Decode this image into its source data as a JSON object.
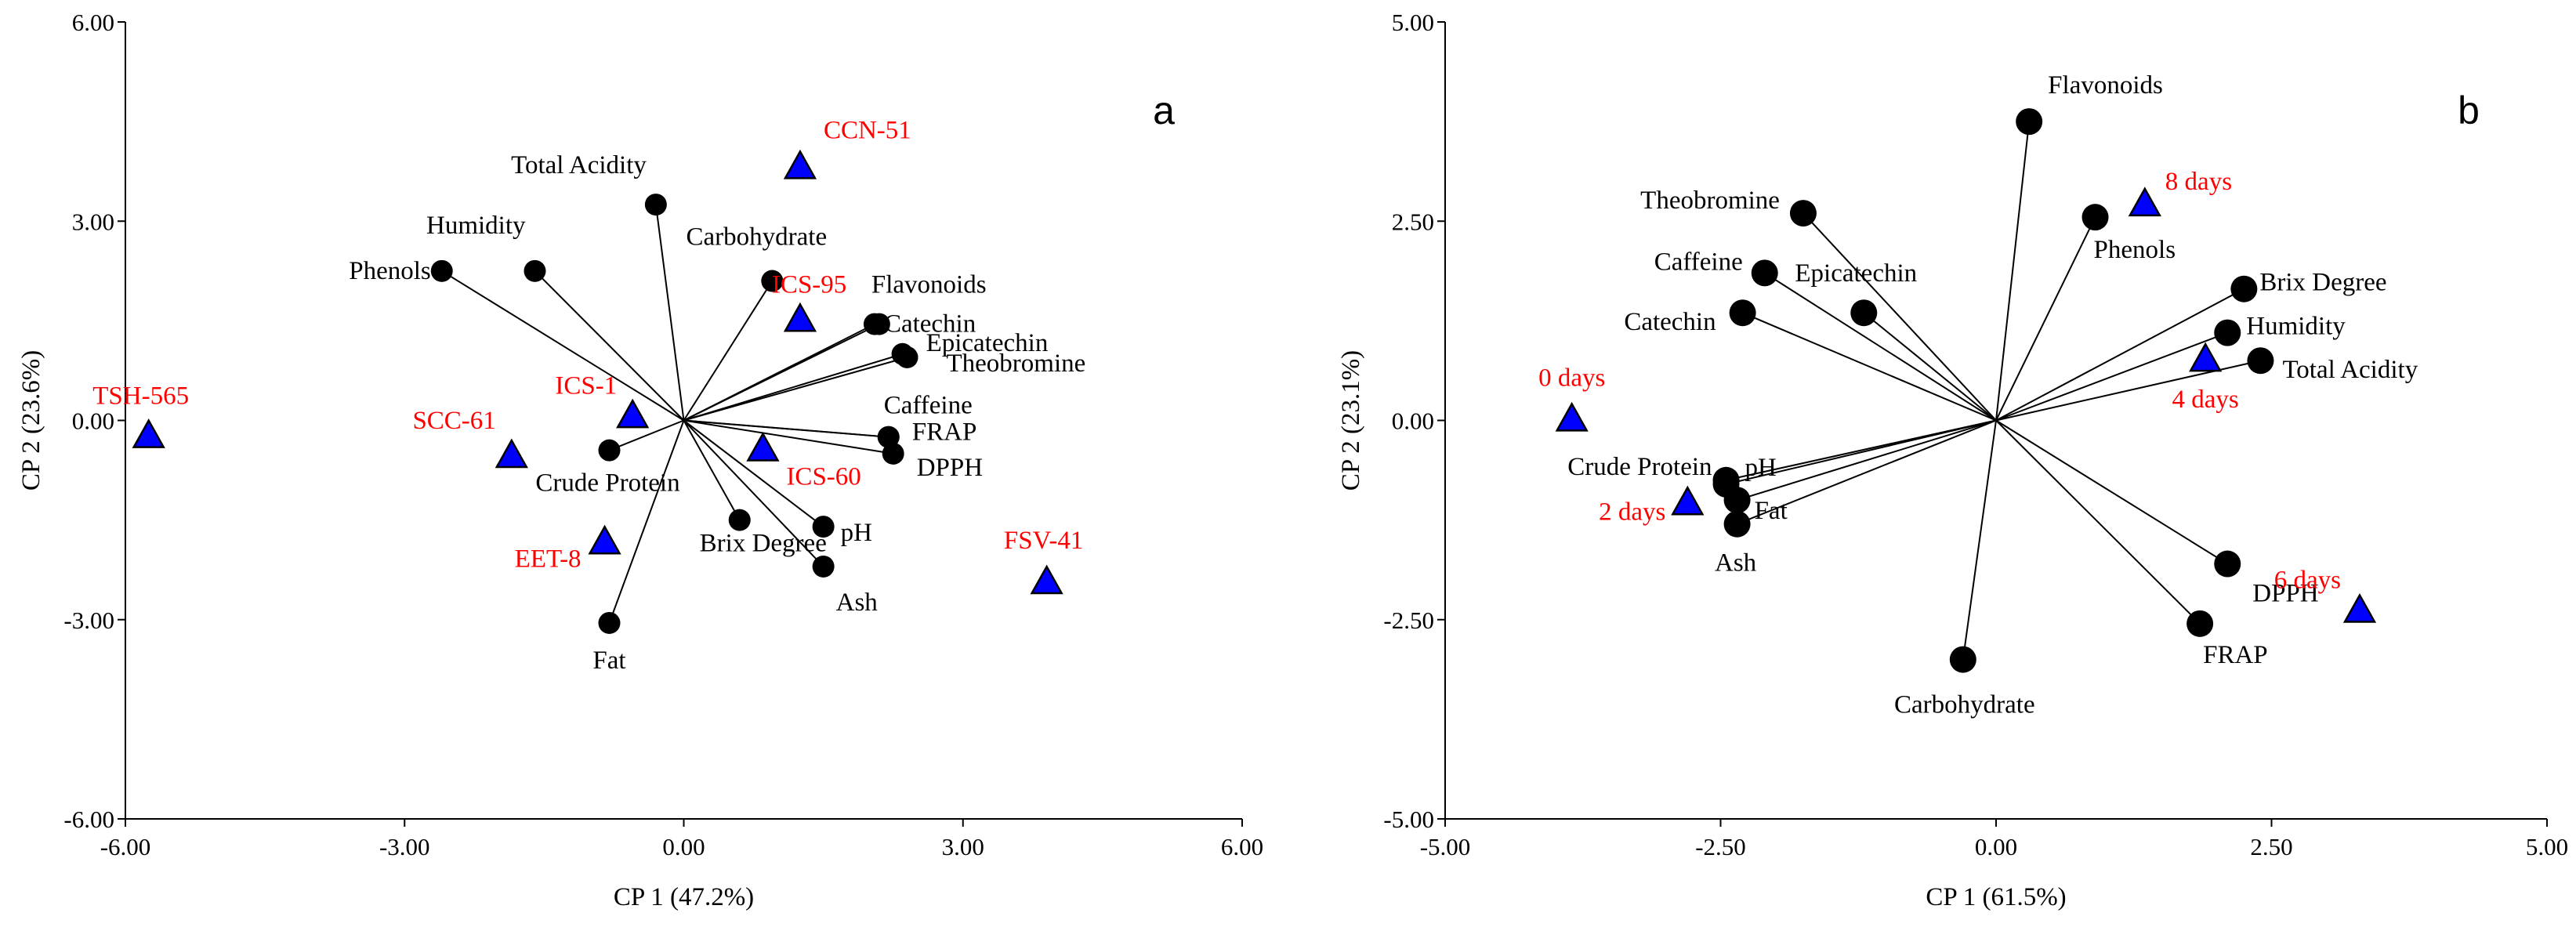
{
  "colors": {
    "axes": "#000000",
    "variable_point": "#000000",
    "sample_marker": "#0000ff",
    "sample_label": "#ff0000"
  },
  "chart_data": [
    {
      "type": "scatter",
      "subtype": "pca-biplot",
      "panel_label": "a",
      "xlabel": "CP 1 (47.2%)",
      "ylabel": "CP 2 (23.6%)",
      "xlim": [
        -6,
        6
      ],
      "ylim": [
        -6,
        6
      ],
      "xticks": [
        "-6.00",
        "-3.00",
        "0.00",
        "3.00",
        "6.00"
      ],
      "yticks": [
        "6.00",
        "3.00",
        "0.00",
        "-3.00",
        "-6.00"
      ],
      "variables": [
        {
          "name": "Total Acidity",
          "x": -0.3,
          "y": 3.25
        },
        {
          "name": "Humidity",
          "x": -1.6,
          "y": 2.25
        },
        {
          "name": "Phenols",
          "x": -2.6,
          "y": 2.25
        },
        {
          "name": "Carbohydrate",
          "x": 0.95,
          "y": 2.1
        },
        {
          "name": "Flavonoids",
          "x": 2.1,
          "y": 1.45
        },
        {
          "name": "Catechin",
          "x": 2.05,
          "y": 1.45
        },
        {
          "name": "Epicatechin",
          "x": 2.35,
          "y": 1.0
        },
        {
          "name": "Theobromine",
          "x": 2.4,
          "y": 0.95
        },
        {
          "name": "Caffeine",
          "x": 2.2,
          "y": -0.25
        },
        {
          "name": "FRAP",
          "x": 2.2,
          "y": -0.25
        },
        {
          "name": "DPPH",
          "x": 2.25,
          "y": -0.5
        },
        {
          "name": "Crude Protein",
          "x": -0.8,
          "y": -0.45
        },
        {
          "name": "Brix Degree",
          "x": 0.6,
          "y": -1.5
        },
        {
          "name": "pH",
          "x": 1.5,
          "y": -1.6
        },
        {
          "name": "Ash",
          "x": 1.5,
          "y": -2.2
        },
        {
          "name": "Fat",
          "x": -0.8,
          "y": -3.05
        }
      ],
      "samples": [
        {
          "name": "TSH-565",
          "x": -5.75,
          "y": -0.25
        },
        {
          "name": "SCC-61",
          "x": -1.85,
          "y": -0.55
        },
        {
          "name": "ICS-1",
          "x": -0.55,
          "y": 0.05
        },
        {
          "name": "EET-8",
          "x": -0.85,
          "y": -1.85
        },
        {
          "name": "CCN-51",
          "x": 1.25,
          "y": 3.8
        },
        {
          "name": "ICS-95",
          "x": 1.25,
          "y": 1.5
        },
        {
          "name": "ICS-60",
          "x": 0.85,
          "y": -0.45
        },
        {
          "name": "FSV-41",
          "x": 3.9,
          "y": -2.45
        }
      ]
    },
    {
      "type": "scatter",
      "subtype": "pca-biplot",
      "panel_label": "b",
      "xlabel": "CP 1 (61.5%)",
      "ylabel": "CP 2 (23.1%)",
      "xlim": [
        -5,
        5
      ],
      "ylim": [
        -5,
        5
      ],
      "xticks": [
        "-5.00",
        "-2.50",
        "0.00",
        "2.50",
        "5.00"
      ],
      "yticks": [
        "5.00",
        "2.50",
        "0.00",
        "-2.50",
        "-5.00"
      ],
      "variables": [
        {
          "name": "Flavonoids",
          "x": 0.3,
          "y": 3.75
        },
        {
          "name": "Phenols",
          "x": 0.9,
          "y": 2.55
        },
        {
          "name": "Theobromine",
          "x": -1.75,
          "y": 2.6
        },
        {
          "name": "Caffeine",
          "x": -2.1,
          "y": 1.85
        },
        {
          "name": "Epicatechin",
          "x": -1.2,
          "y": 1.35
        },
        {
          "name": "Catechin",
          "x": -2.3,
          "y": 1.35
        },
        {
          "name": "Brix Degree",
          "x": 2.25,
          "y": 1.65
        },
        {
          "name": "Humidity",
          "x": 2.1,
          "y": 1.1
        },
        {
          "name": "Total Acidity",
          "x": 2.4,
          "y": 0.75
        },
        {
          "name": "pH",
          "x": -2.45,
          "y": -0.75
        },
        {
          "name": "Crude Protein",
          "x": -2.45,
          "y": -0.8
        },
        {
          "name": "Fat",
          "x": -2.35,
          "y": -1.0
        },
        {
          "name": "Ash",
          "x": -2.35,
          "y": -1.3
        },
        {
          "name": "DPPH",
          "x": 2.1,
          "y": -1.8
        },
        {
          "name": "FRAP",
          "x": 1.85,
          "y": -2.55
        },
        {
          "name": "Carbohydrate",
          "x": -0.3,
          "y": -3.0
        }
      ],
      "samples": [
        {
          "name": "0 days",
          "x": -3.85,
          "y": 0.0
        },
        {
          "name": "2 days",
          "x": -2.8,
          "y": -1.05
        },
        {
          "name": "4 days",
          "x": 1.9,
          "y": 0.75
        },
        {
          "name": "6 days",
          "x": 3.3,
          "y": -2.4
        },
        {
          "name": "8 days",
          "x": 1.35,
          "y": 2.7
        }
      ]
    }
  ]
}
